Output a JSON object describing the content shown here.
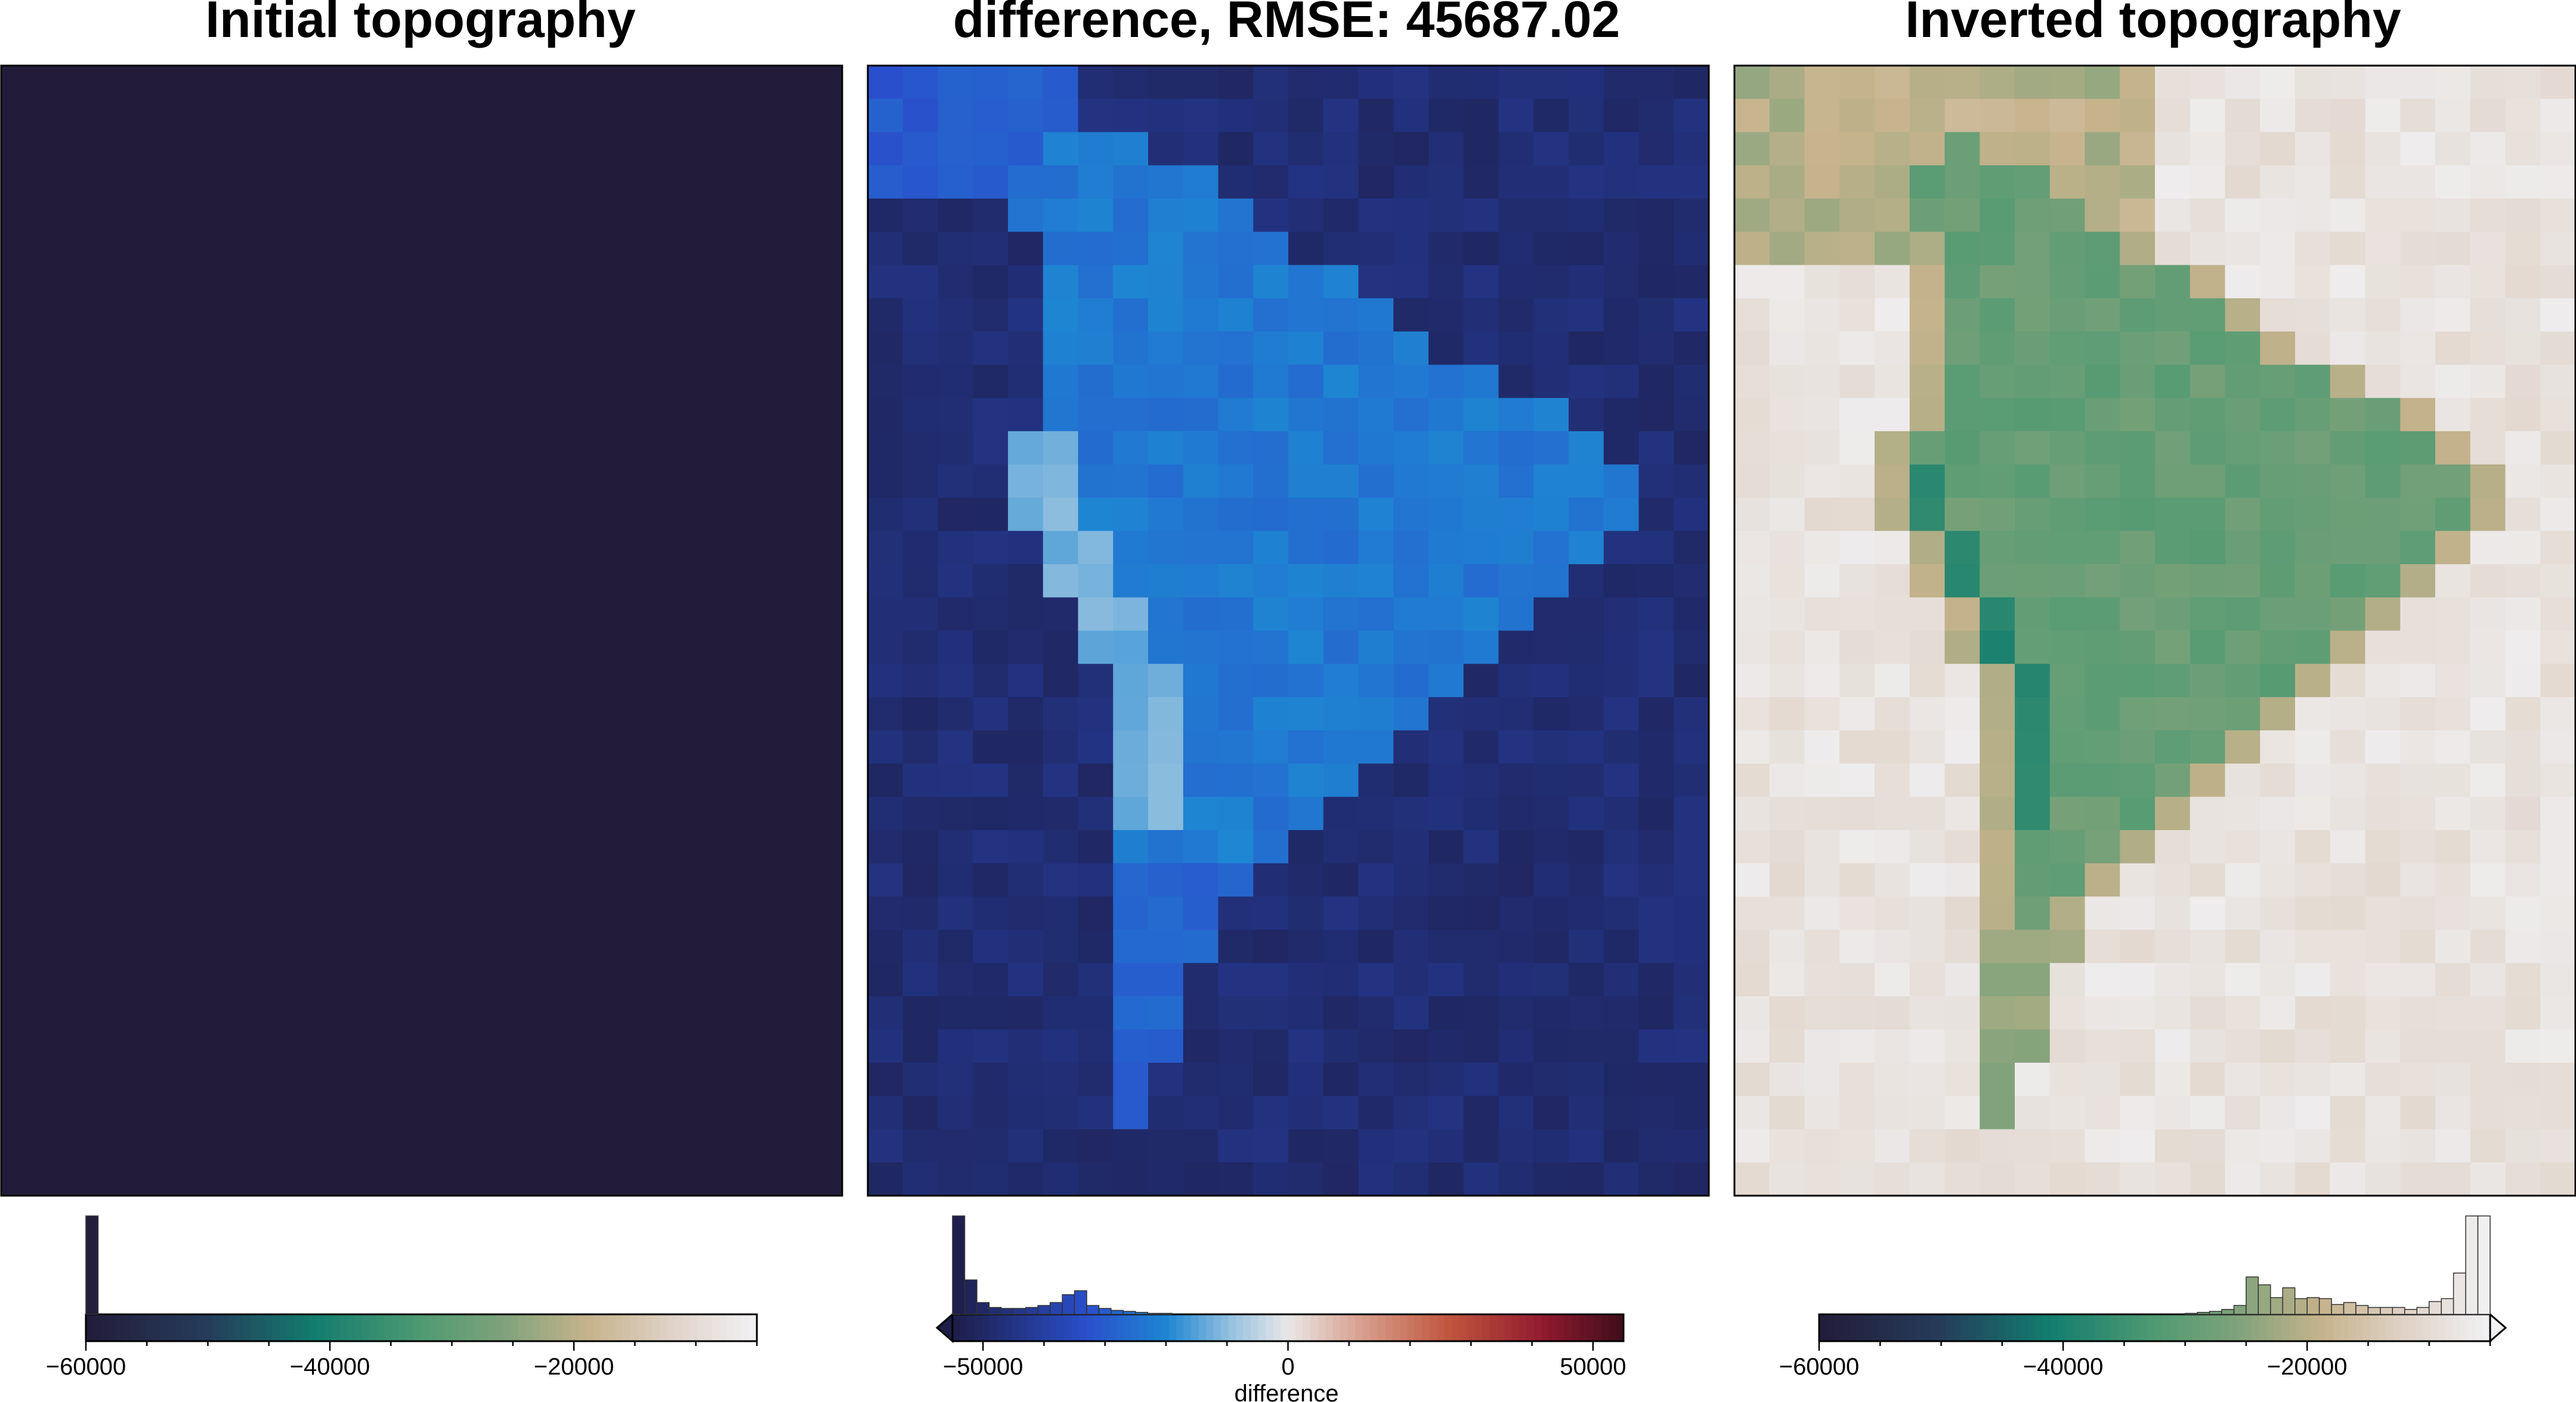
{
  "chart_data": [
    {
      "type": "heatmap",
      "title": "Initial topography",
      "uniform_value": -60000,
      "colormap": "batlow-like: navy-teal-green-tan-white",
      "colorbar": {
        "range": [
          -60000,
          -5000
        ],
        "ticks": [
          -60000,
          -40000,
          -20000
        ],
        "tick_labels": [
          "−60000",
          "−40000",
          "−20000"
        ],
        "label": "",
        "extend": "none",
        "histogram": {
          "bins": [
            -60000,
            -59000
          ],
          "counts": [
            1.0
          ]
        }
      }
    },
    {
      "type": "heatmap",
      "title": "difference, RMSE: 45687.02",
      "colormap": "diverging: navy-blue-lightblue-white-red-darkred",
      "colorbar": {
        "range": [
          -55000,
          55000
        ],
        "ticks": [
          -50000,
          0,
          50000
        ],
        "tick_labels": [
          "−50000",
          "0",
          "50000"
        ],
        "label": "difference",
        "extend": "min",
        "histogram": {
          "bins": [
            -55000,
            -53000,
            -51000,
            -49000,
            -47000,
            -45000,
            -43000,
            -41000,
            -39000,
            -37000,
            -35000,
            -33000,
            -31000,
            -29000,
            -27000,
            -25000,
            -23000,
            -21000
          ],
          "counts": [
            1.0,
            0.35,
            0.12,
            0.07,
            0.06,
            0.06,
            0.07,
            0.09,
            0.12,
            0.2,
            0.24,
            0.09,
            0.06,
            0.04,
            0.03,
            0.02,
            0.01,
            0.01
          ]
        }
      }
    },
    {
      "type": "heatmap",
      "title": "Inverted topography",
      "colormap": "batlow-like: navy-teal-green-tan-white",
      "colorbar": {
        "range": [
          -60000,
          -5000
        ],
        "ticks": [
          -60000,
          -40000,
          -20000
        ],
        "tick_labels": [
          "−60000",
          "−40000",
          "−20000"
        ],
        "label": "",
        "extend": "max",
        "histogram": {
          "bins": [
            -30000,
            -29000,
            -28000,
            -27000,
            -26000,
            -25000,
            -24000,
            -23000,
            -22000,
            -21000,
            -20000,
            -19000,
            -18000,
            -17000,
            -16000,
            -15000,
            -14000,
            -13000,
            -12000,
            -11000,
            -10000,
            -9000,
            -8000,
            -7000,
            -6000
          ],
          "counts": [
            0.01,
            0.02,
            0.03,
            0.05,
            0.09,
            0.38,
            0.3,
            0.17,
            0.27,
            0.16,
            0.17,
            0.16,
            0.1,
            0.12,
            0.09,
            0.07,
            0.07,
            0.07,
            0.05,
            0.07,
            0.13,
            0.16,
            0.42,
            1.0,
            1.0
          ]
        }
      }
    }
  ]
}
